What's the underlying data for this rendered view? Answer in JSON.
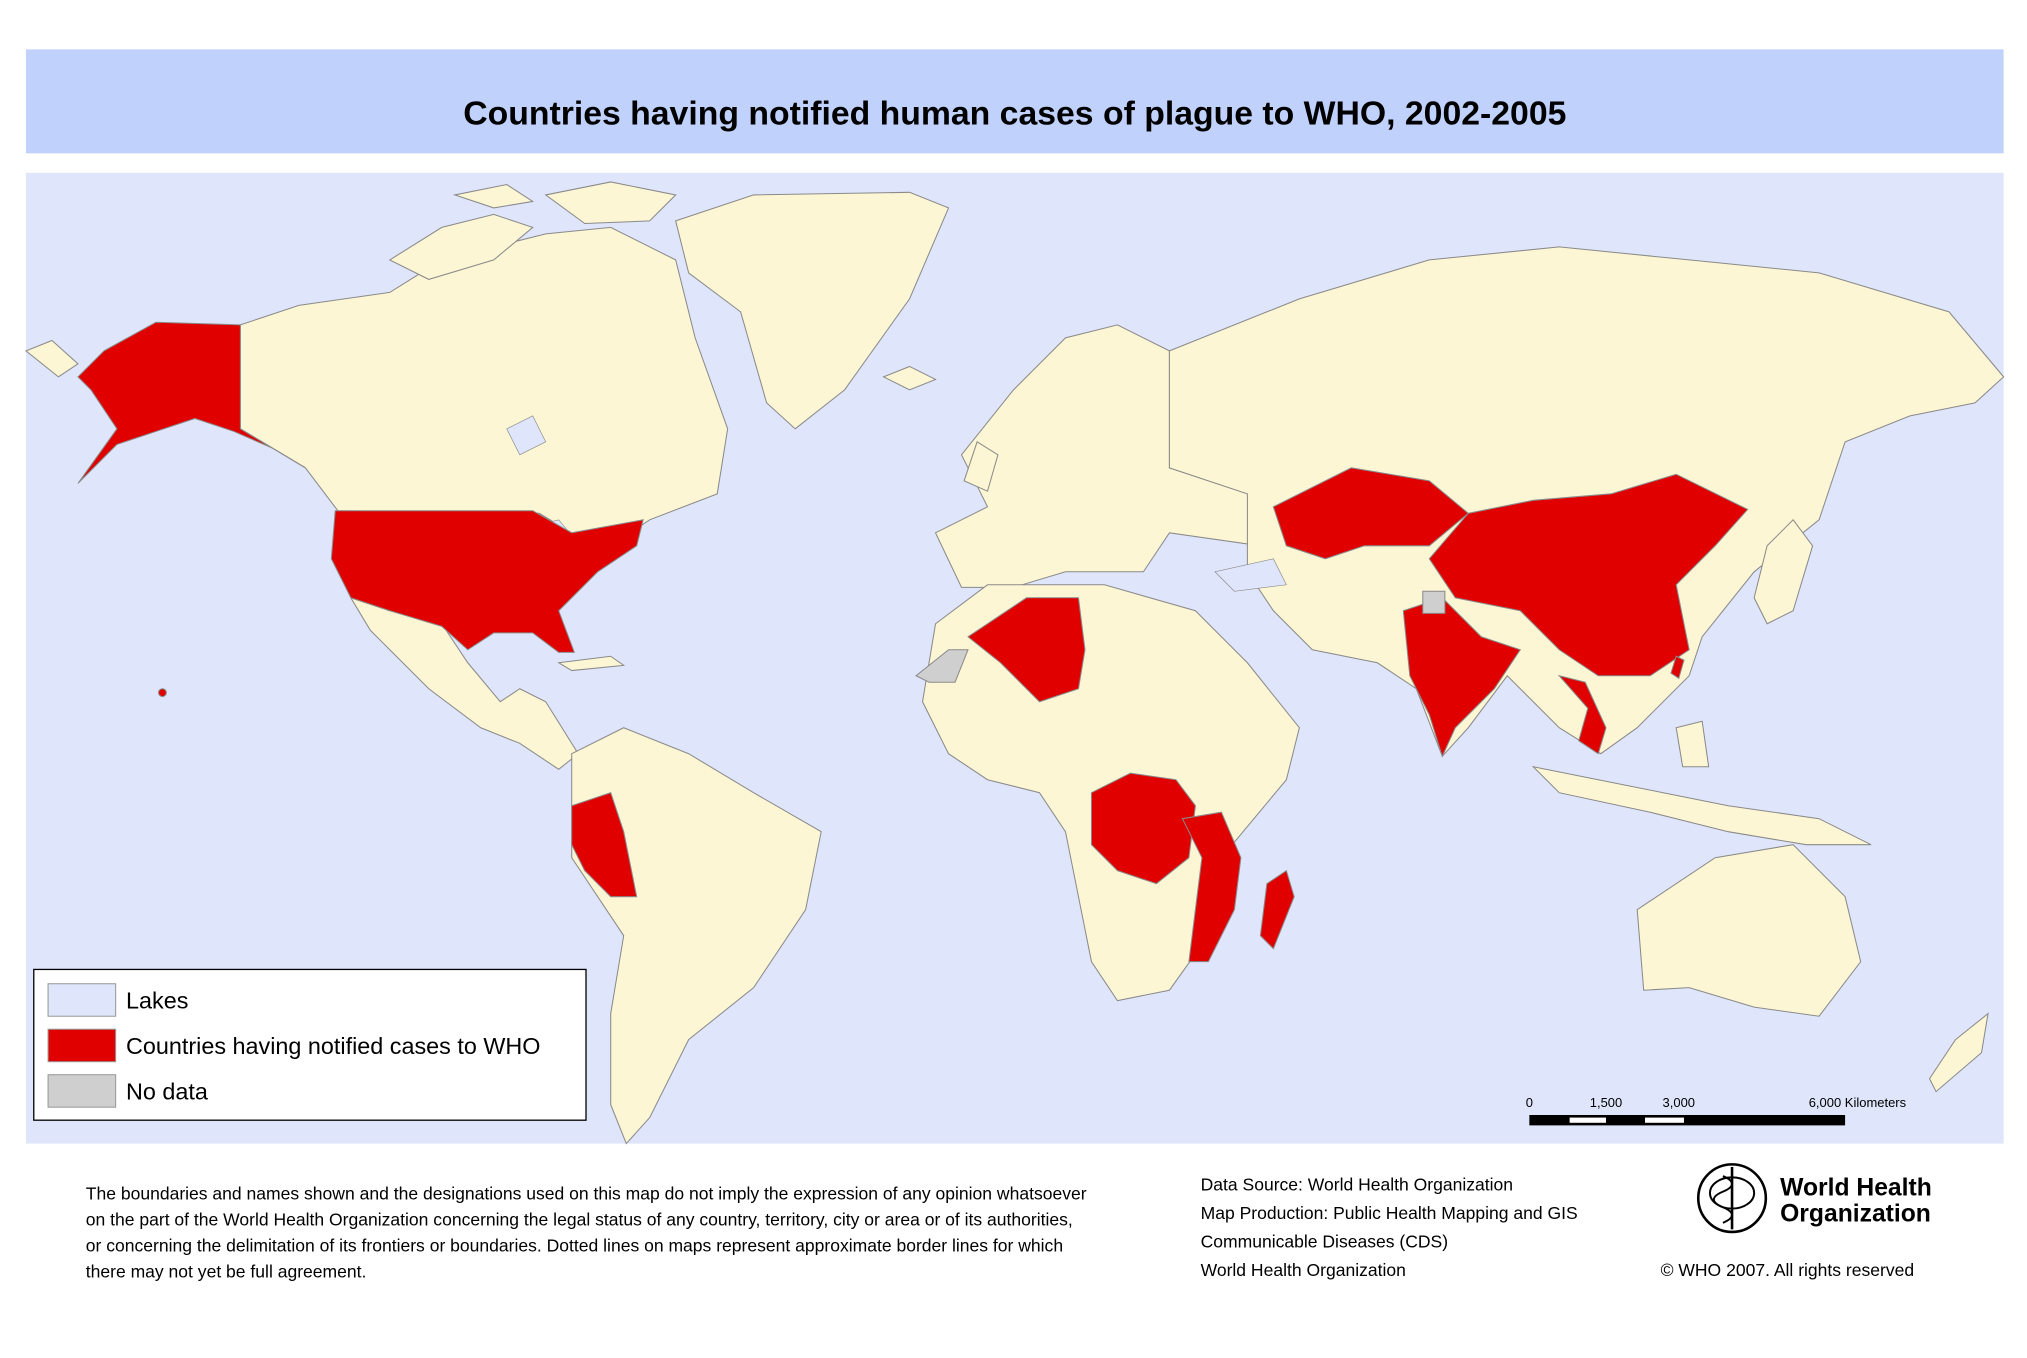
{
  "title": "Countries having notified human cases of plague to WHO, 2002-2005",
  "legend": [
    {
      "label": "Lakes",
      "color": "#dfe6fb"
    },
    {
      "label": "Countries having notified cases to WHO",
      "color": "#e00000"
    },
    {
      "label": "No data",
      "color": "#cfcfcf"
    }
  ],
  "scale_bar": {
    "labels": [
      "0",
      "1,500",
      "3,000",
      "6,000 Kilometers"
    ]
  },
  "disclaimer": [
    "The boundaries and names shown and the designations used on this map do not imply the expression of any opinion whatsoever",
    "on the part of the World Health Organization concerning the legal status of any country, territory, city or area or of its authorities,",
    "or concerning the delimitation of its frontiers or boundaries.  Dotted lines on maps represent approximate border lines for which",
    "there may not yet be full agreement."
  ],
  "credits": [
    "Data Source: World Health Organization",
    "Map Production: Public Health Mapping and GIS",
    "Communicable Diseases (CDS)",
    "World Health Organization"
  ],
  "logo": [
    "World Health",
    "Organization"
  ],
  "copyright": "© WHO 2007. All rights reserved"
}
